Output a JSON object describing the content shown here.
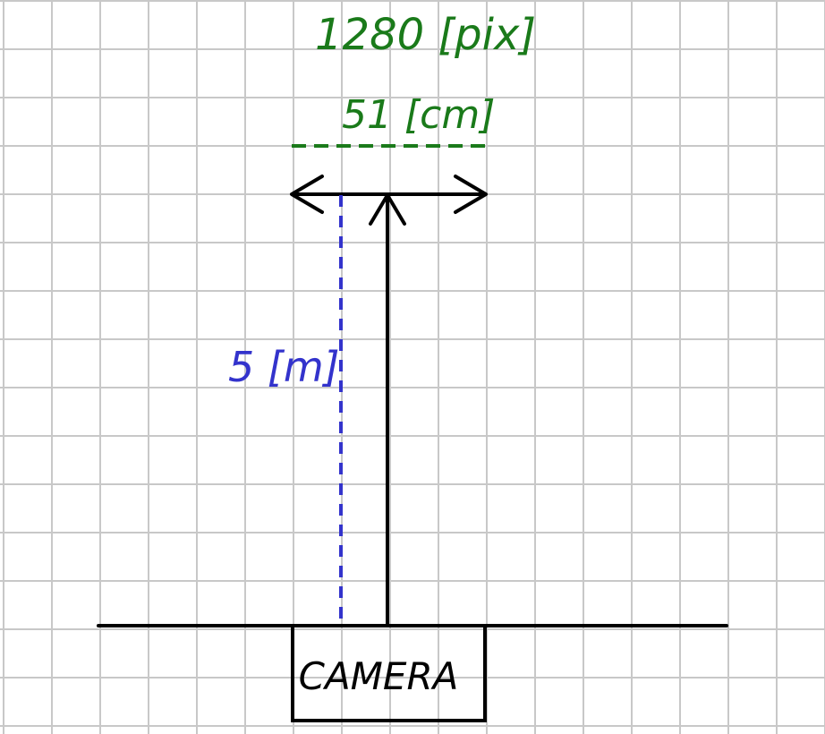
{
  "diagram": {
    "pixel_width_label": "1280 [pix]",
    "physical_width_label": "51 [cm]",
    "distance_label": "5 [m]",
    "camera_label": "CAMERA"
  },
  "colors": {
    "background": "#ffffff",
    "grid": "#c8c8c8",
    "ink": "#000000",
    "green": "#1a7a1a",
    "blue": "#3333cc"
  }
}
